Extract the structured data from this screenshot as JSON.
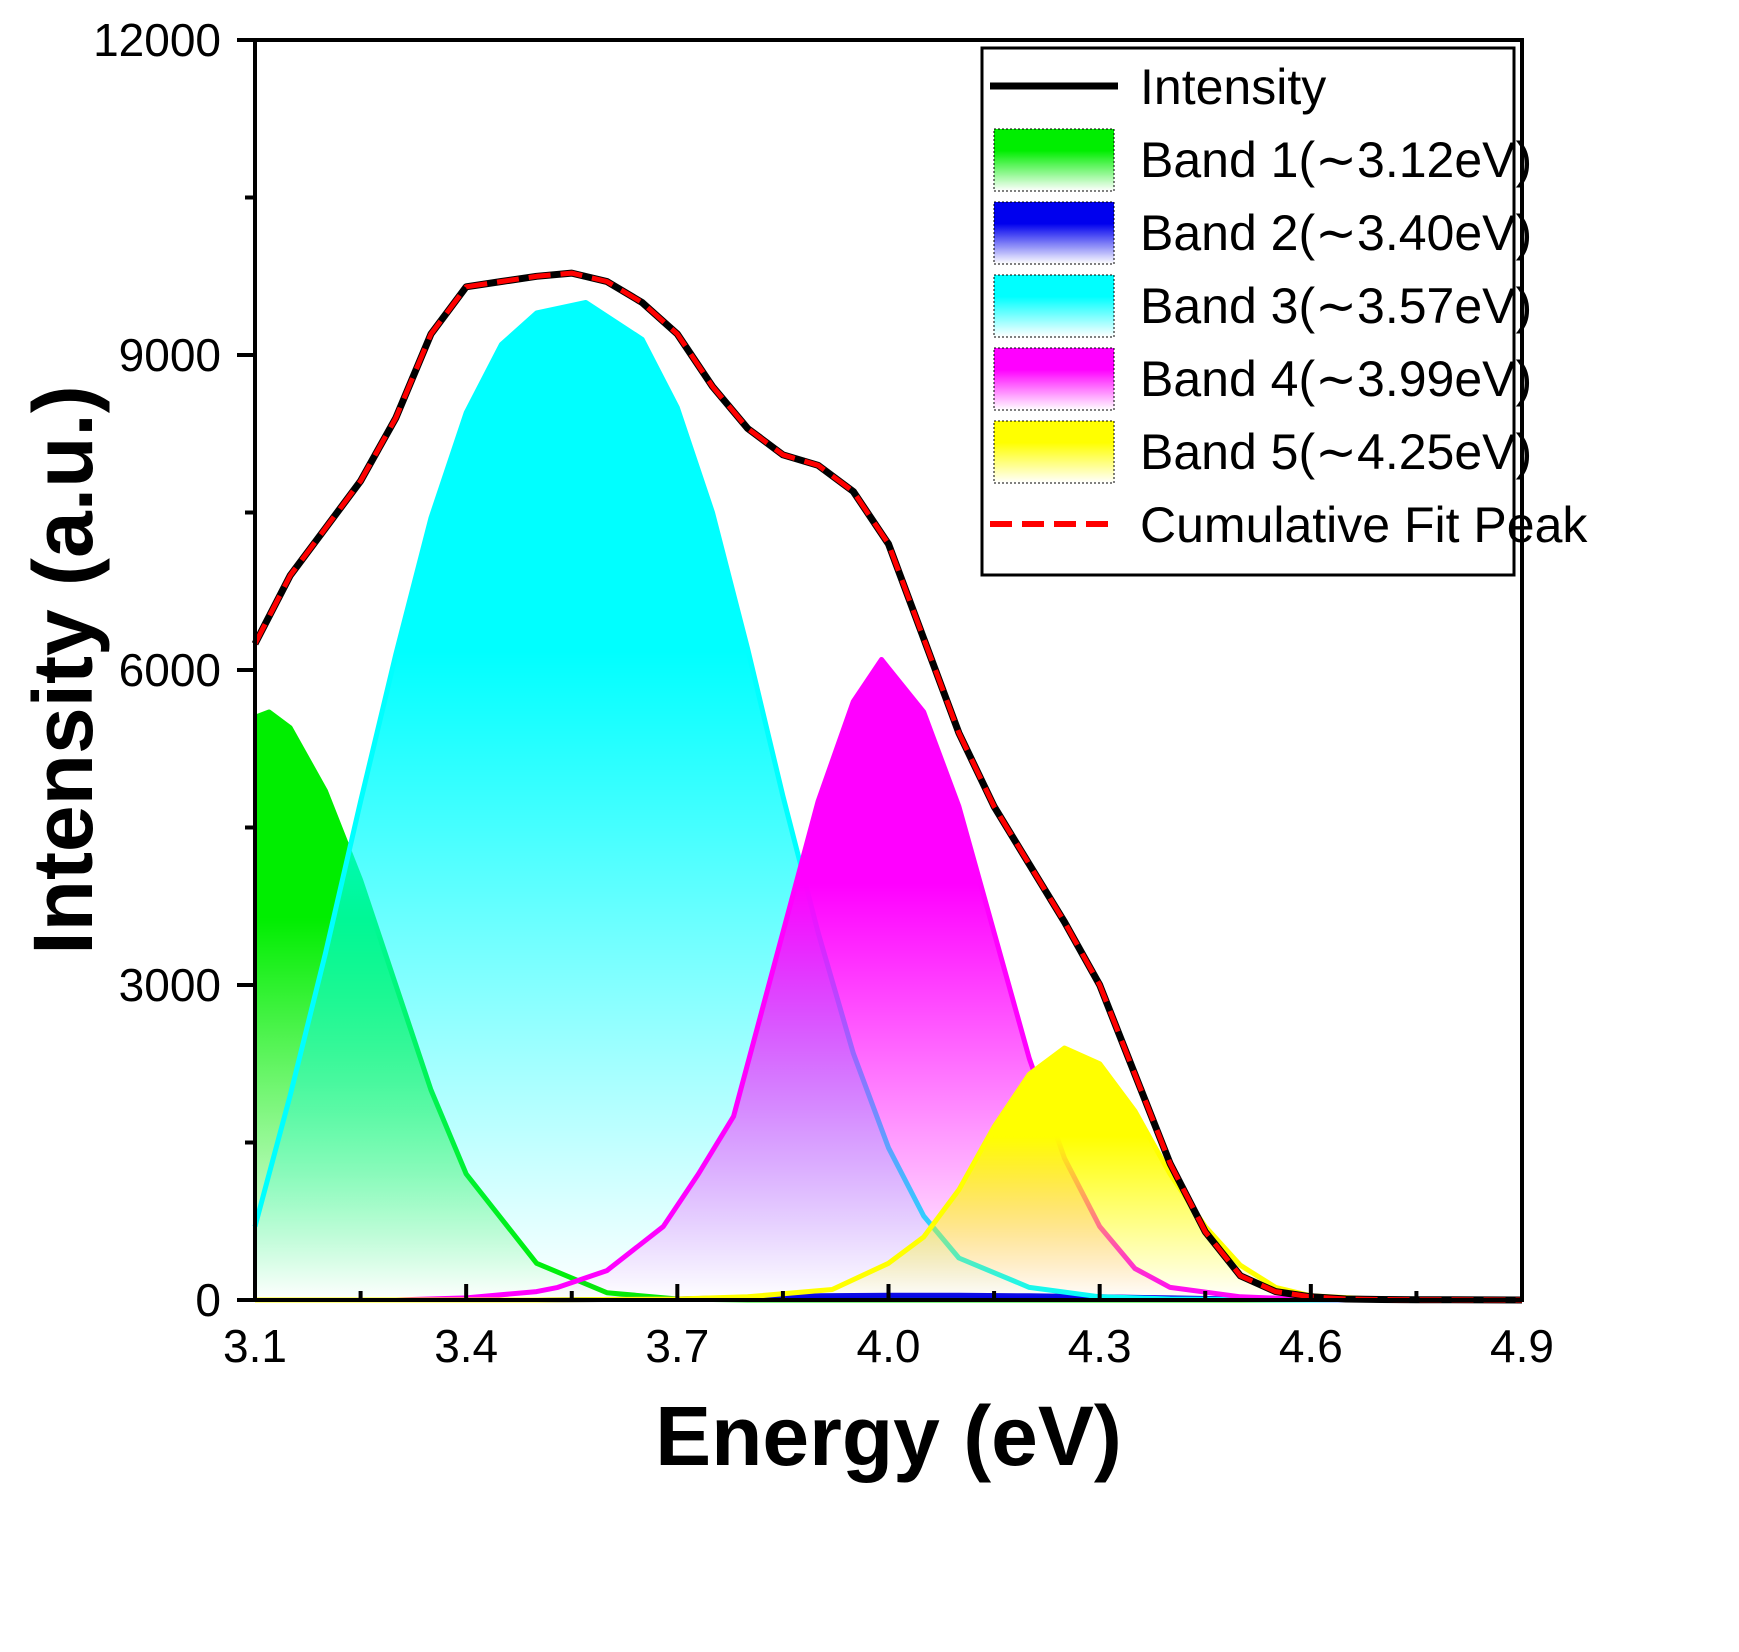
{
  "chart_data": {
    "type": "area",
    "xlabel": "Energy (eV)",
    "ylabel": "Intensity (a.u.)",
    "xlim": [
      3.1,
      4.9
    ],
    "ylim": [
      0,
      12000
    ],
    "x_ticks": [
      "3.1",
      "3.4",
      "3.7",
      "4.0",
      "4.3",
      "4.6",
      "4.9"
    ],
    "y_ticks": [
      "0",
      "3000",
      "6000",
      "9000",
      "12000"
    ],
    "legend_position": "top-right",
    "grid": false,
    "series": [
      {
        "name": "Intensity",
        "kind": "line",
        "color": "#000000",
        "x": [
          3.1,
          3.15,
          3.2,
          3.25,
          3.3,
          3.35,
          3.4,
          3.45,
          3.5,
          3.55,
          3.6,
          3.65,
          3.7,
          3.75,
          3.8,
          3.85,
          3.9,
          3.95,
          4.0,
          4.05,
          4.1,
          4.15,
          4.2,
          4.25,
          4.3,
          4.35,
          4.4,
          4.45,
          4.5,
          4.55,
          4.6,
          4.65,
          4.7,
          4.75,
          4.8,
          4.85,
          4.9
        ],
        "y": [
          6250,
          6900,
          7350,
          7800,
          8400,
          9200,
          9650,
          9700,
          9750,
          9780,
          9700,
          9500,
          9200,
          8700,
          8300,
          8050,
          7950,
          7700,
          7200,
          6300,
          5400,
          4700,
          4150,
          3600,
          3000,
          2150,
          1300,
          650,
          230,
          80,
          30,
          10,
          5,
          3,
          2,
          1,
          0
        ]
      },
      {
        "name": "Band 1(∼3.12eV)",
        "kind": "band",
        "color": "#00ee00",
        "x": [
          3.1,
          3.12,
          3.15,
          3.2,
          3.25,
          3.3,
          3.35,
          3.4,
          3.5,
          3.6,
          3.7,
          3.8,
          3.9,
          4.0,
          4.1,
          4.2,
          4.3,
          4.4,
          4.5,
          4.6,
          4.7,
          4.8,
          4.9
        ],
        "y": [
          5550,
          5600,
          5450,
          4850,
          4000,
          3000,
          2000,
          1200,
          350,
          70,
          10,
          0,
          0,
          0,
          0,
          0,
          0,
          0,
          0,
          0,
          0,
          0,
          0
        ]
      },
      {
        "name": "Band 2(∼3.40eV)",
        "kind": "band",
        "color": "#0000ee",
        "x": [
          3.1,
          3.5,
          3.7,
          3.8,
          3.9,
          4.0,
          4.1,
          4.2,
          4.3,
          4.4,
          4.5,
          4.6,
          4.7,
          4.8,
          4.9
        ],
        "y": [
          0,
          0,
          10,
          25,
          40,
          45,
          45,
          40,
          30,
          20,
          10,
          5,
          0,
          0,
          0
        ]
      },
      {
        "name": "Band 3(∼3.57eV)",
        "kind": "band",
        "color": "#00ffff",
        "x": [
          3.1,
          3.15,
          3.2,
          3.25,
          3.3,
          3.35,
          3.4,
          3.45,
          3.5,
          3.57,
          3.65,
          3.7,
          3.75,
          3.8,
          3.85,
          3.9,
          3.95,
          4.0,
          4.05,
          4.1,
          4.2,
          4.3,
          4.4,
          4.5,
          4.6,
          4.7,
          4.8,
          4.9
        ],
        "y": [
          700,
          1950,
          3300,
          4750,
          6150,
          7450,
          8450,
          9100,
          9400,
          9500,
          9150,
          8500,
          7500,
          6200,
          4800,
          3500,
          2350,
          1450,
          800,
          400,
          120,
          30,
          10,
          5,
          0,
          0,
          0,
          0
        ]
      },
      {
        "name": "Band 4(∼3.99eV)",
        "kind": "band",
        "color": "#ff00ff",
        "x": [
          3.1,
          3.3,
          3.4,
          3.5,
          3.53,
          3.6,
          3.68,
          3.73,
          3.78,
          3.85,
          3.9,
          3.95,
          3.99,
          4.05,
          4.1,
          4.15,
          4.2,
          4.25,
          4.3,
          4.35,
          4.4,
          4.5,
          4.6,
          4.7,
          4.8,
          4.9
        ],
        "y": [
          0,
          0,
          20,
          80,
          120,
          280,
          700,
          1200,
          1750,
          3500,
          4750,
          5700,
          6100,
          5600,
          4700,
          3500,
          2300,
          1350,
          700,
          300,
          120,
          30,
          5,
          0,
          0,
          0
        ]
      },
      {
        "name": "Band 5(∼4.25eV)",
        "kind": "band",
        "color": "#ffff00",
        "x": [
          3.1,
          3.5,
          3.7,
          3.8,
          3.92,
          4.0,
          4.05,
          4.1,
          4.15,
          4.2,
          4.25,
          4.3,
          4.35,
          4.4,
          4.45,
          4.5,
          4.55,
          4.6,
          4.7,
          4.8,
          4.9
        ],
        "y": [
          0,
          0,
          10,
          30,
          100,
          350,
          600,
          1050,
          1650,
          2150,
          2400,
          2250,
          1800,
          1200,
          700,
          330,
          120,
          40,
          5,
          0,
          0
        ]
      },
      {
        "name": "Cumulative Fit Peak",
        "kind": "dashed",
        "color": "#ff0000",
        "x": [
          3.1,
          3.15,
          3.2,
          3.25,
          3.3,
          3.35,
          3.4,
          3.45,
          3.5,
          3.55,
          3.6,
          3.65,
          3.7,
          3.75,
          3.8,
          3.85,
          3.9,
          3.95,
          4.0,
          4.05,
          4.1,
          4.15,
          4.2,
          4.25,
          4.3,
          4.35,
          4.4,
          4.45,
          4.5,
          4.55,
          4.6,
          4.65,
          4.7,
          4.75,
          4.8,
          4.85,
          4.9
        ],
        "y": [
          6250,
          6900,
          7350,
          7800,
          8400,
          9200,
          9650,
          9700,
          9750,
          9780,
          9700,
          9500,
          9200,
          8700,
          8300,
          8050,
          7950,
          7700,
          7200,
          6300,
          5400,
          4700,
          4150,
          3600,
          3000,
          2150,
          1300,
          650,
          230,
          80,
          30,
          10,
          5,
          3,
          2,
          1,
          0
        ]
      }
    ]
  }
}
